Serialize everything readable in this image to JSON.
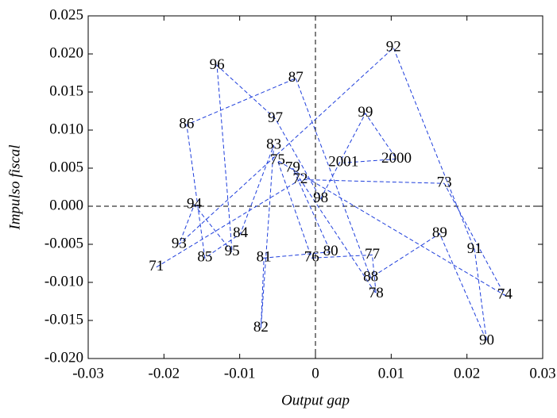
{
  "chart_data": {
    "type": "line",
    "xlabel": "Output gap",
    "ylabel": "Impulso fiscal",
    "x": [
      -0.021,
      -0.002,
      0.017,
      0.025,
      -0.005,
      -0.0005,
      0.0075,
      0.008,
      -0.003,
      0.002,
      -0.0068,
      -0.0072,
      -0.0055,
      -0.0099,
      -0.0146,
      -0.017,
      -0.0026,
      0.0073,
      0.0164,
      0.0226,
      0.021,
      0.0103,
      -0.018,
      -0.016,
      -0.011,
      -0.013,
      -0.0053,
      0.0007,
      0.0066,
      0.0107,
      0.0037
    ],
    "series": [
      {
        "color": "#1f3fdc",
        "dashed": true,
        "values": [
          -0.008,
          0.0035,
          0.003,
          -0.0117,
          0.006,
          -0.0068,
          -0.0064,
          -0.0115,
          0.005,
          -0.006,
          -0.0068,
          -0.016,
          0.008,
          -0.0036,
          -0.0068,
          0.0107,
          0.0168,
          -0.0094,
          -0.0036,
          -0.0177,
          -0.0057,
          0.0208,
          -0.005,
          0.0002,
          -0.006,
          0.0185,
          0.0115,
          0.001,
          0.0122,
          0.0062,
          0.0057
        ],
        "labels": [
          "71",
          "72",
          "73",
          "74",
          "75",
          "76",
          "77",
          "78",
          "79",
          "80",
          "81",
          "82",
          "83",
          "84",
          "85",
          "86",
          "87",
          "88",
          "89",
          "90",
          "91",
          "92",
          "93",
          "94",
          "95",
          "96",
          "97",
          "98",
          "99",
          "2000",
          "2001"
        ]
      }
    ],
    "xlim": [
      -0.03,
      0.03
    ],
    "xticks": [
      -0.03,
      -0.02,
      -0.01,
      0,
      0.01,
      0.02,
      0.03
    ],
    "ylim": [
      -0.02,
      0.025
    ],
    "yticks": [
      {
        "value": -0.02,
        "label": "-0.020"
      },
      -0.015,
      {
        "value": -0.01,
        "label": "-0.010"
      },
      -0.005,
      {
        "value": 0,
        "label": "0.000"
      },
      0.005,
      {
        "value": 0.01,
        "label": "0.010"
      },
      0.015,
      {
        "value": 0.02,
        "label": "0.020"
      },
      0.025
    ],
    "hlines": [
      0
    ],
    "vlines": [
      0
    ]
  }
}
